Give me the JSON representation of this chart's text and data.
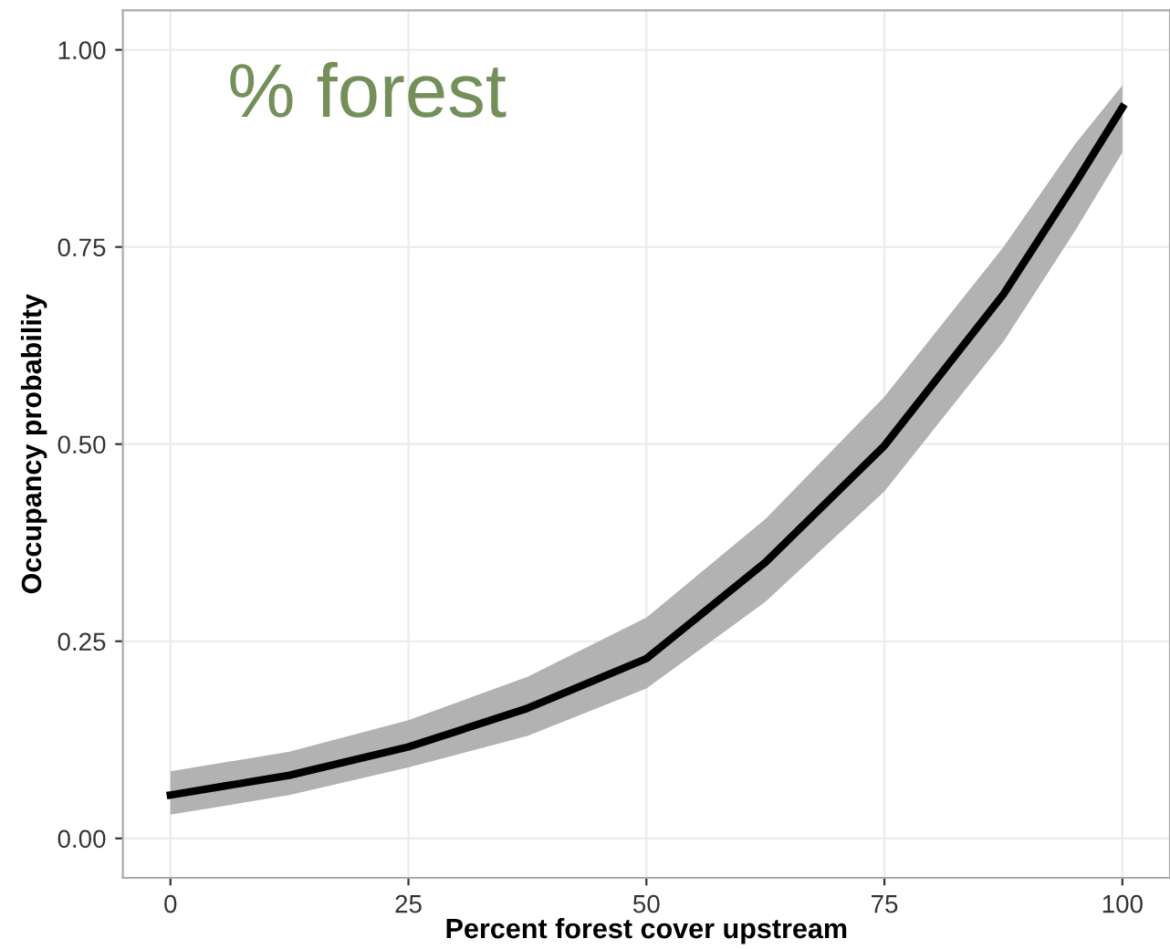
{
  "chart_data": {
    "type": "line",
    "xlabel": "Percent forest cover upstream",
    "ylabel": "Occupancy probability",
    "annotations": [
      "% forest"
    ],
    "x": [
      0,
      12.5,
      25,
      37.5,
      50,
      62.5,
      75,
      87.5,
      95,
      100
    ],
    "series": [
      {
        "color": "#000000",
        "values": [
          0.055,
          0.08,
          0.116,
          0.165,
          0.228,
          0.35,
          0.498,
          0.69,
          0.83,
          0.927
        ],
        "lower": [
          0.03,
          0.055,
          0.09,
          0.13,
          0.19,
          0.3,
          0.44,
          0.63,
          0.77,
          0.87
        ],
        "upper": [
          0.085,
          0.11,
          0.15,
          0.205,
          0.28,
          0.405,
          0.56,
          0.75,
          0.88,
          0.955
        ]
      }
    ],
    "xlim": [
      -5,
      105
    ],
    "ylim": [
      -0.05,
      1.05
    ],
    "xticks": [
      0,
      25,
      50,
      75,
      100
    ],
    "yticks": [
      {
        "value": 0,
        "label": "0.00"
      },
      {
        "value": 0.25,
        "label": "0.25"
      },
      {
        "value": 0.5,
        "label": "0.50"
      },
      {
        "value": 0.75,
        "label": "0.75"
      },
      {
        "value": 1,
        "label": "1.00"
      }
    ],
    "grid": true
  }
}
